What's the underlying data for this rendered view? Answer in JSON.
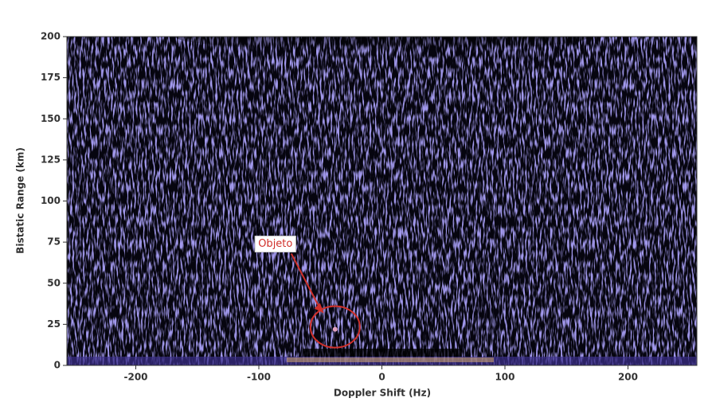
{
  "chart_data": {
    "type": "heatmap",
    "xlabel": "Doppler Shift (Hz)",
    "ylabel": "Bistatic Range (km)",
    "xlim": [
      -256,
      256
    ],
    "xticks": [
      -200,
      -100,
      0,
      100,
      200
    ],
    "ylim": [
      0,
      200
    ],
    "yticks": [
      0,
      25,
      50,
      75,
      100,
      125,
      150,
      175,
      200
    ],
    "colormap": [
      "#05040f",
      "#5a4fd0"
    ],
    "annotations": [
      {
        "text": "Objeto",
        "x": -38,
        "y": 22,
        "color": "#d0302a"
      }
    ]
  }
}
